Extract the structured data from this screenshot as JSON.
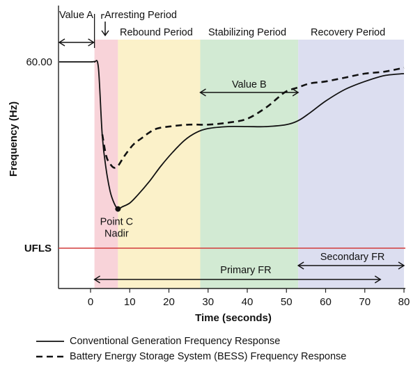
{
  "chart_data": {
    "type": "line",
    "title": "",
    "xlabel": "Time (seconds)",
    "ylabel": "Frequency (Hz)",
    "xlim": [
      -8,
      80
    ],
    "x_ticks": [
      0,
      10,
      20,
      30,
      40,
      50,
      60,
      70,
      80
    ],
    "y_ticks": [
      {
        "value": 60.0,
        "label": "60.00"
      }
    ],
    "periods": [
      {
        "name": "Arresting Period",
        "label": "Arresting Period",
        "x_start": 1,
        "x_end": 7,
        "color": "#f8d3d9"
      },
      {
        "name": "Rebound Period",
        "label": "Rebound Period",
        "x_start": 7,
        "x_end": 28,
        "color": "#fbf1c9"
      },
      {
        "name": "Stabilizing Period",
        "label": "Stabilizing Period",
        "x_start": 28,
        "x_end": 53,
        "color": "#d2ead3"
      },
      {
        "name": "Recovery Period",
        "label": "Recovery Period",
        "x_start": 53,
        "x_end": 80,
        "color": "#dcdef0"
      }
    ],
    "series": [
      {
        "name": "Conventional Generation Frequency Response",
        "style": "solid",
        "x": [
          -8,
          0,
          1,
          2,
          3,
          4,
          5,
          6,
          7,
          8,
          10,
          12,
          15,
          18,
          21,
          24,
          27,
          30,
          35,
          40,
          45,
          50,
          53,
          56,
          60,
          65,
          70,
          75,
          80
        ],
        "y": [
          60.0,
          60.0,
          60.0,
          59.97,
          59.62,
          59.45,
          59.34,
          59.28,
          59.25,
          59.26,
          59.28,
          59.32,
          59.39,
          59.47,
          59.54,
          59.6,
          59.64,
          59.66,
          59.67,
          59.67,
          59.67,
          59.68,
          59.7,
          59.74,
          59.8,
          59.86,
          59.9,
          59.93,
          59.94
        ]
      },
      {
        "name": "Battery Energy Storage System (BESS) Frequency Response",
        "style": "dashed",
        "x": [
          3,
          4,
          5,
          6,
          7,
          8,
          9,
          11,
          13,
          15,
          17,
          20,
          25,
          30,
          35,
          40,
          45,
          48,
          50,
          53,
          56,
          60,
          65,
          70,
          75,
          80
        ],
        "y": [
          59.63,
          59.52,
          59.48,
          59.46,
          59.47,
          59.5,
          59.53,
          59.58,
          59.61,
          59.64,
          59.66,
          59.67,
          59.68,
          59.68,
          59.69,
          59.71,
          59.77,
          59.82,
          59.85,
          59.87,
          59.89,
          59.9,
          59.92,
          59.94,
          59.95,
          59.97
        ]
      }
    ],
    "ufls": {
      "label": "UFLS",
      "value": 59.05,
      "color": "#d23b3b"
    },
    "annotations": {
      "value_a": {
        "label": "Value A",
        "x_start": -8,
        "x_end": 1
      },
      "value_b": {
        "label": "Value B",
        "x_start": 28,
        "x_end": 53
      },
      "nadir": {
        "line1": "Point C",
        "line2": "Nadir",
        "x": 7,
        "y": 59.25
      },
      "primary_fr": {
        "label": "Primary FR",
        "x_start": 1,
        "x_end": 74
      },
      "secondary_fr": {
        "label": "Secondary FR",
        "x_start": 53,
        "x_end": 80
      }
    }
  },
  "legend": [
    {
      "label": "Conventional Generation Frequency Response",
      "style": "solid"
    },
    {
      "label": "Battery Energy Storage System (BESS) Frequency Response",
      "style": "dashed"
    }
  ]
}
